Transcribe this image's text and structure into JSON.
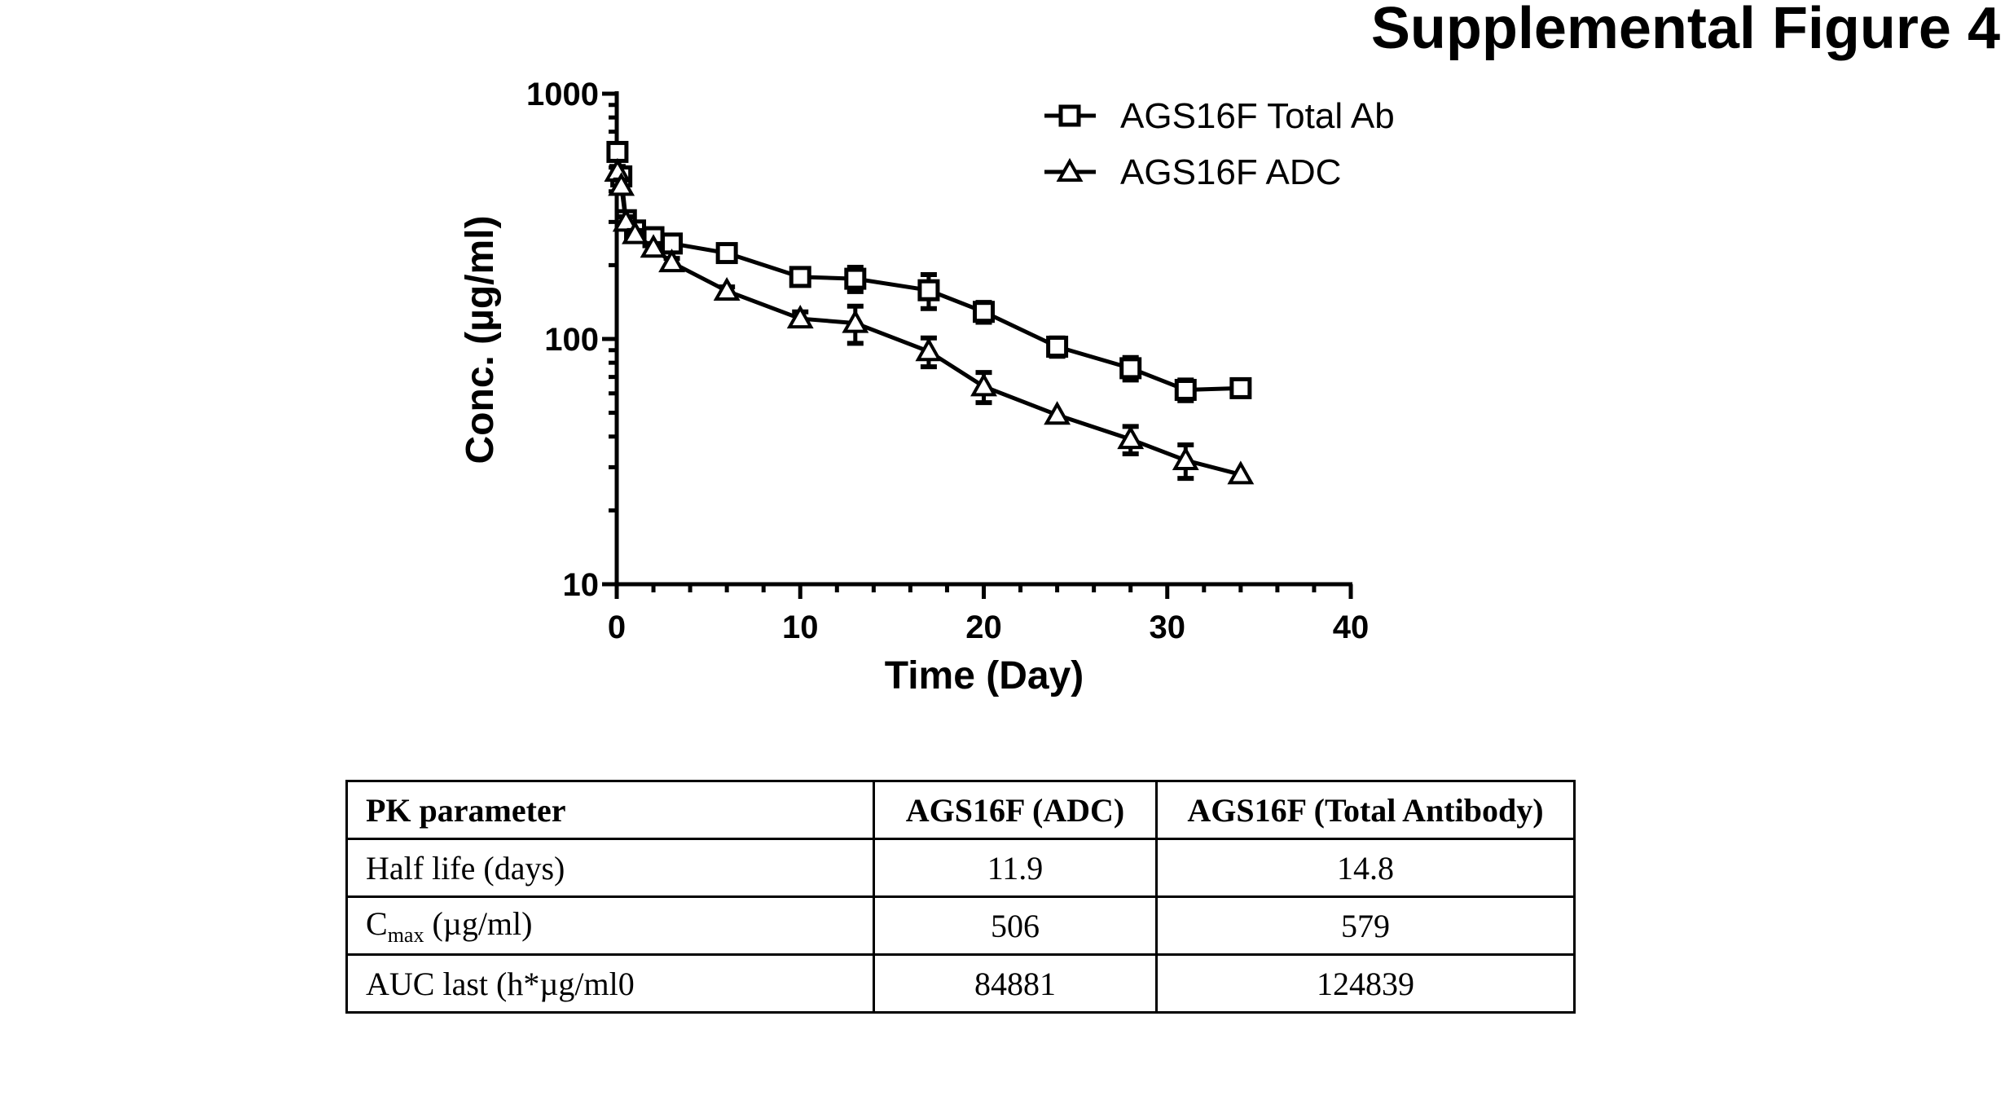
{
  "figure_title": "Supplemental Figure 4",
  "chart_data": {
    "type": "line",
    "title": "",
    "xlabel": "Time (Day)",
    "ylabel": "Conc. (µg/ml)",
    "xlim": [
      0,
      40
    ],
    "ylim": [
      10,
      1000
    ],
    "yscale": "log",
    "xticks": [
      "0",
      "10",
      "20",
      "30",
      "40"
    ],
    "yticks": [
      "10",
      "100",
      "1000"
    ],
    "grid": false,
    "legend_position": "top-right",
    "series": [
      {
        "name": "AGS16F Total Ab",
        "marker": "square",
        "x": [
          0.04,
          0.25,
          0.5,
          1,
          2,
          3,
          6,
          10,
          13,
          17,
          20,
          24,
          28,
          31,
          34
        ],
        "y": [
          579,
          460,
          305,
          277,
          260,
          245,
          224,
          179,
          176,
          158,
          129,
          93,
          76,
          62,
          63
        ],
        "err": [
          30,
          30,
          15,
          15,
          10,
          12,
          15,
          10,
          20,
          25,
          12,
          8,
          8,
          6,
          0
        ]
      },
      {
        "name": "AGS16F ADC",
        "marker": "triangle",
        "x": [
          0.04,
          0.25,
          0.5,
          1,
          2,
          3,
          6,
          10,
          13,
          17,
          20,
          24,
          28,
          31,
          34
        ],
        "y": [
          480,
          420,
          300,
          267,
          235,
          205,
          157,
          121,
          116,
          89,
          64,
          49,
          39,
          32,
          28
        ],
        "err": [
          25,
          25,
          15,
          10,
          10,
          8,
          6,
          8,
          20,
          12,
          9,
          0,
          5,
          5,
          0
        ]
      }
    ]
  },
  "table": {
    "headers": [
      "PK parameter",
      "AGS16F (ADC)",
      "AGS16F (Total Antibody)"
    ],
    "rows": [
      {
        "label": "Half life (days)",
        "adc": "11.9",
        "total": "14.8"
      },
      {
        "label_main": "C",
        "label_sub": "max",
        "label_rest": " (µg/ml)",
        "adc": "506",
        "total": "579"
      },
      {
        "label": "AUC last (h*µg/ml0",
        "adc": "84881",
        "total": "124839"
      }
    ]
  }
}
